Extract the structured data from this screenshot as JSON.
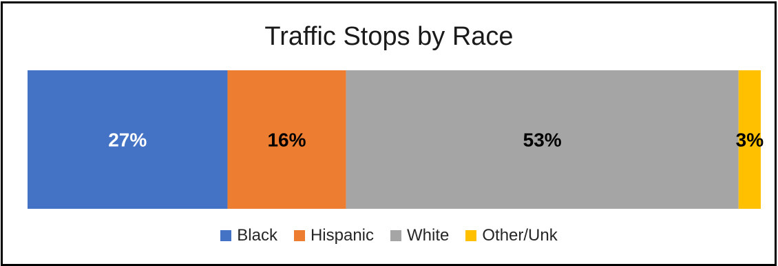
{
  "chart_data": {
    "type": "bar",
    "orientation": "horizontal-stacked-100",
    "title": "Traffic Stops by Race",
    "xlabel": "",
    "ylabel": "",
    "grid": false,
    "legend_position": "bottom",
    "series": [
      {
        "name": "Black",
        "value": 27,
        "label": "27%",
        "color": "#4472C4",
        "label_color": "#FFFFFF"
      },
      {
        "name": "Hispanic",
        "value": 16,
        "label": "16%",
        "color": "#ED7D31",
        "label_color": "#000000"
      },
      {
        "name": "White",
        "value": 53,
        "label": "53%",
        "color": "#A5A5A5",
        "label_color": "#000000"
      },
      {
        "name": "Other/Unk",
        "value": 3,
        "label": "3%",
        "color": "#FFC000",
        "label_color": "#000000"
      }
    ]
  }
}
